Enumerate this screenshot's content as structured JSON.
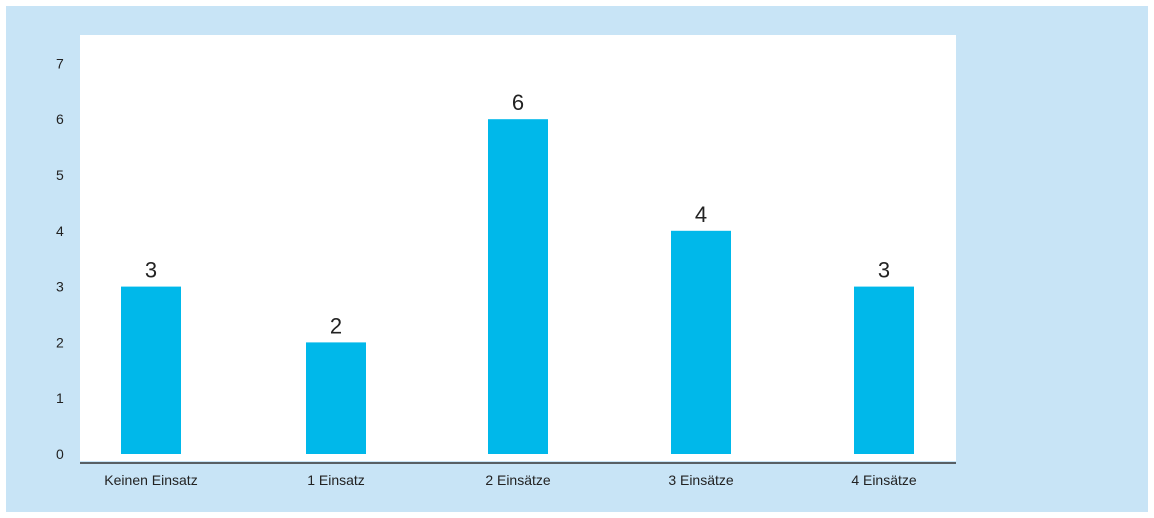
{
  "colors": {
    "background_frame": "#c8e4f6",
    "plot_background": "#ffffff",
    "bar": "#00b8ea",
    "axis": "#333333"
  },
  "chart_data": {
    "type": "bar",
    "categories": [
      "Keinen Einsatz",
      "1 Einsatz",
      "2 Einsätze",
      "3 Einsätze",
      "4 Einsätze"
    ],
    "values": [
      3,
      2,
      6,
      4,
      3
    ],
    "data_labels": [
      "3",
      "2",
      "6",
      "4",
      "3"
    ],
    "title": "",
    "xlabel": "",
    "ylabel": "",
    "ylim": [
      0,
      7
    ],
    "yticks": [
      "0",
      "1",
      "2",
      "3",
      "4",
      "5",
      "6",
      "7"
    ],
    "grid": false,
    "legend": "none"
  }
}
